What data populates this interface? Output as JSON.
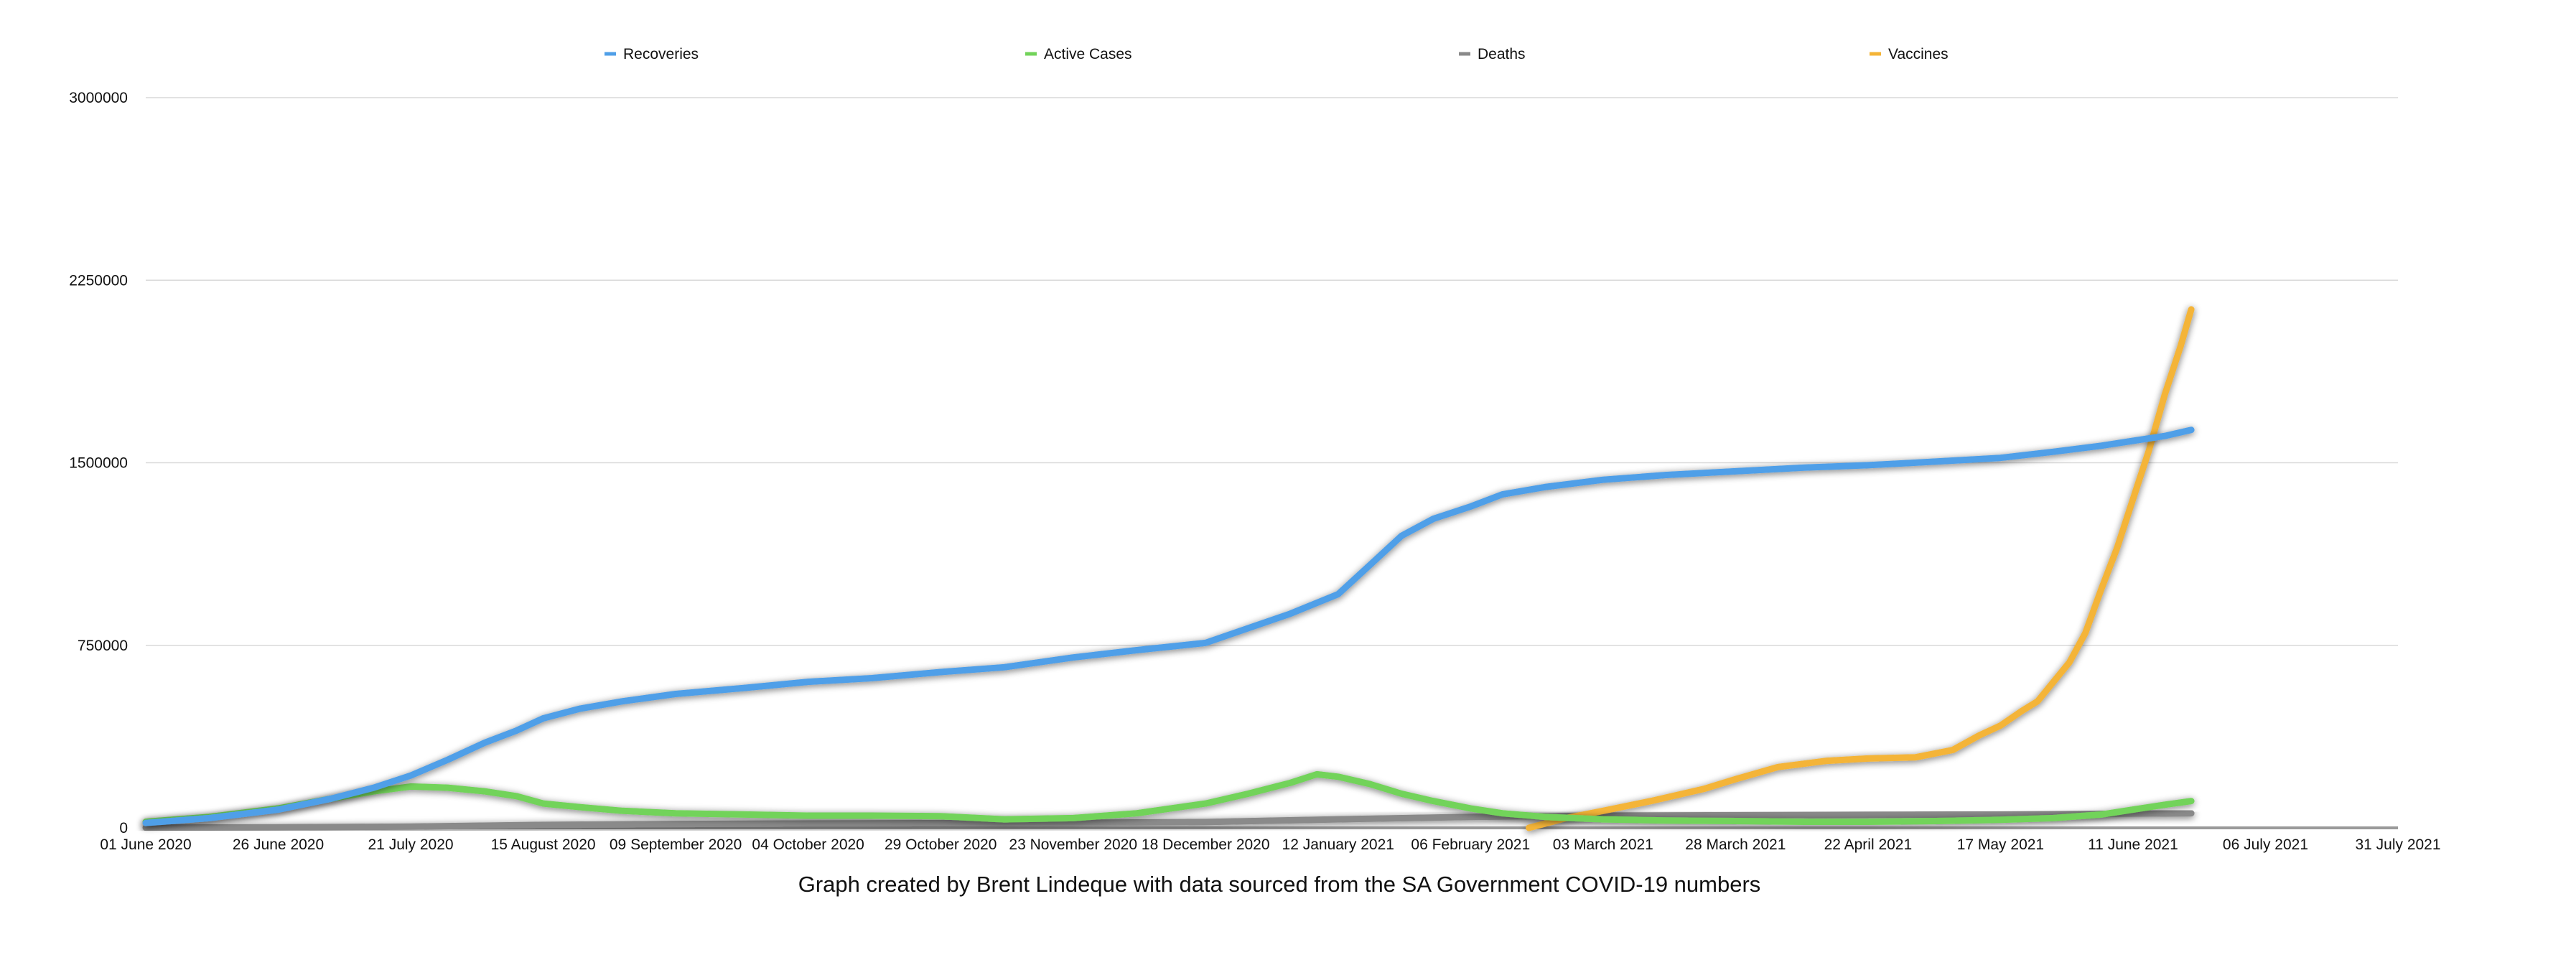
{
  "chart_data": {
    "type": "line",
    "title": "",
    "xlabel": "",
    "ylabel": "",
    "caption": "Graph created by Brent Lindeque with data sourced from the SA Government COVID-19 numbers",
    "ylim": [
      0,
      3000000
    ],
    "y_ticks": [
      {
        "value": 0,
        "label": "0"
      },
      {
        "value": 750000,
        "label": "750000"
      },
      {
        "value": 1500000,
        "label": "1500000"
      },
      {
        "value": 2250000,
        "label": "2250000"
      },
      {
        "value": 3000000,
        "label": "3000000"
      }
    ],
    "xlim": [
      "2020-06-01",
      "2021-07-31"
    ],
    "x_ticks": [
      {
        "date": "2020-06-01",
        "label": "01 June 2020"
      },
      {
        "date": "2020-06-26",
        "label": "26 June 2020"
      },
      {
        "date": "2020-07-21",
        "label": "21 July 2020"
      },
      {
        "date": "2020-08-15",
        "label": "15 August 2020"
      },
      {
        "date": "2020-09-09",
        "label": "09 September 2020"
      },
      {
        "date": "2020-10-04",
        "label": "04 October 2020"
      },
      {
        "date": "2020-10-29",
        "label": "29 October 2020"
      },
      {
        "date": "2020-11-23",
        "label": "23 November 2020"
      },
      {
        "date": "2020-12-18",
        "label": "18 December 2020"
      },
      {
        "date": "2021-01-12",
        "label": "12 January 2021"
      },
      {
        "date": "2021-02-06",
        "label": "06 February 2021"
      },
      {
        "date": "2021-03-03",
        "label": "03 March 2021"
      },
      {
        "date": "2021-03-28",
        "label": "28 March 2021"
      },
      {
        "date": "2021-04-22",
        "label": "22 April 2021"
      },
      {
        "date": "2021-05-17",
        "label": "17 May 2021"
      },
      {
        "date": "2021-06-11",
        "label": "11 June 2021"
      },
      {
        "date": "2021-07-06",
        "label": "06 July 2021"
      },
      {
        "date": "2021-07-31",
        "label": "31 July 2021"
      }
    ],
    "grid": "horizontal",
    "legend_position": "top",
    "series": [
      {
        "name": "Recoveries",
        "color": "#4f9fe8",
        "points": [
          [
            "2020-06-01",
            20000
          ],
          [
            "2020-06-13",
            40000
          ],
          [
            "2020-06-26",
            75000
          ],
          [
            "2020-07-06",
            120000
          ],
          [
            "2020-07-14",
            165000
          ],
          [
            "2020-07-21",
            215000
          ],
          [
            "2020-07-28",
            280000
          ],
          [
            "2020-08-04",
            350000
          ],
          [
            "2020-08-10",
            400000
          ],
          [
            "2020-08-15",
            450000
          ],
          [
            "2020-08-22",
            490000
          ],
          [
            "2020-08-30",
            520000
          ],
          [
            "2020-09-09",
            550000
          ],
          [
            "2020-09-22",
            575000
          ],
          [
            "2020-10-04",
            600000
          ],
          [
            "2020-10-16",
            615000
          ],
          [
            "2020-10-29",
            640000
          ],
          [
            "2020-11-10",
            660000
          ],
          [
            "2020-11-23",
            700000
          ],
          [
            "2020-12-05",
            730000
          ],
          [
            "2020-12-18",
            760000
          ],
          [
            "2020-12-26",
            820000
          ],
          [
            "2021-01-03",
            880000
          ],
          [
            "2021-01-12",
            960000
          ],
          [
            "2021-01-18",
            1080000
          ],
          [
            "2021-01-24",
            1200000
          ],
          [
            "2021-01-30",
            1270000
          ],
          [
            "2021-02-06",
            1320000
          ],
          [
            "2021-02-12",
            1370000
          ],
          [
            "2021-02-20",
            1400000
          ],
          [
            "2021-03-03",
            1430000
          ],
          [
            "2021-03-15",
            1450000
          ],
          [
            "2021-03-28",
            1465000
          ],
          [
            "2021-04-10",
            1480000
          ],
          [
            "2021-04-22",
            1490000
          ],
          [
            "2021-05-05",
            1505000
          ],
          [
            "2021-05-17",
            1520000
          ],
          [
            "2021-05-27",
            1545000
          ],
          [
            "2021-06-05",
            1570000
          ],
          [
            "2021-06-11",
            1590000
          ],
          [
            "2021-06-17",
            1610000
          ],
          [
            "2021-06-22",
            1635000
          ]
        ]
      },
      {
        "name": "Active Cases",
        "color": "#72d35a",
        "points": [
          [
            "2020-06-01",
            25000
          ],
          [
            "2020-06-13",
            45000
          ],
          [
            "2020-06-26",
            80000
          ],
          [
            "2020-07-06",
            120000
          ],
          [
            "2020-07-14",
            150000
          ],
          [
            "2020-07-21",
            170000
          ],
          [
            "2020-07-28",
            165000
          ],
          [
            "2020-08-04",
            150000
          ],
          [
            "2020-08-10",
            130000
          ],
          [
            "2020-08-15",
            100000
          ],
          [
            "2020-08-22",
            85000
          ],
          [
            "2020-08-30",
            70000
          ],
          [
            "2020-09-09",
            60000
          ],
          [
            "2020-09-22",
            55000
          ],
          [
            "2020-10-04",
            50000
          ],
          [
            "2020-10-16",
            50000
          ],
          [
            "2020-10-29",
            48000
          ],
          [
            "2020-11-10",
            35000
          ],
          [
            "2020-11-23",
            40000
          ],
          [
            "2020-12-05",
            60000
          ],
          [
            "2020-12-18",
            100000
          ],
          [
            "2020-12-26",
            140000
          ],
          [
            "2021-01-03",
            185000
          ],
          [
            "2021-01-08",
            220000
          ],
          [
            "2021-01-12",
            210000
          ],
          [
            "2021-01-18",
            180000
          ],
          [
            "2021-01-24",
            140000
          ],
          [
            "2021-01-30",
            110000
          ],
          [
            "2021-02-06",
            80000
          ],
          [
            "2021-02-12",
            60000
          ],
          [
            "2021-02-20",
            45000
          ],
          [
            "2021-03-03",
            35000
          ],
          [
            "2021-03-15",
            30000
          ],
          [
            "2021-03-28",
            28000
          ],
          [
            "2021-04-10",
            25000
          ],
          [
            "2021-04-22",
            25000
          ],
          [
            "2021-05-05",
            28000
          ],
          [
            "2021-05-17",
            33000
          ],
          [
            "2021-05-27",
            40000
          ],
          [
            "2021-06-05",
            55000
          ],
          [
            "2021-06-11",
            75000
          ],
          [
            "2021-06-17",
            95000
          ],
          [
            "2021-06-22",
            110000
          ]
        ]
      },
      {
        "name": "Deaths",
        "color": "#8a8a8a",
        "points": [
          [
            "2020-06-01",
            1000
          ],
          [
            "2020-06-26",
            2000
          ],
          [
            "2020-07-21",
            5000
          ],
          [
            "2020-08-15",
            12000
          ],
          [
            "2020-09-09",
            16000
          ],
          [
            "2020-10-04",
            18000
          ],
          [
            "2020-10-29",
            19500
          ],
          [
            "2020-11-23",
            21000
          ],
          [
            "2020-12-18",
            24000
          ],
          [
            "2021-01-12",
            35000
          ],
          [
            "2021-02-06",
            45000
          ],
          [
            "2021-03-03",
            50000
          ],
          [
            "2021-03-28",
            52000
          ],
          [
            "2021-04-22",
            54000
          ],
          [
            "2021-05-17",
            55000
          ],
          [
            "2021-06-11",
            58000
          ],
          [
            "2021-06-22",
            60000
          ]
        ]
      },
      {
        "name": "Vaccines",
        "color": "#f4b437",
        "points": [
          [
            "2021-02-17",
            0
          ],
          [
            "2021-02-24",
            40000
          ],
          [
            "2021-03-03",
            70000
          ],
          [
            "2021-03-12",
            110000
          ],
          [
            "2021-03-22",
            160000
          ],
          [
            "2021-03-28",
            200000
          ],
          [
            "2021-04-05",
            250000
          ],
          [
            "2021-04-14",
            275000
          ],
          [
            "2021-04-22",
            285000
          ],
          [
            "2021-05-01",
            290000
          ],
          [
            "2021-05-08",
            320000
          ],
          [
            "2021-05-13",
            380000
          ],
          [
            "2021-05-17",
            420000
          ],
          [
            "2021-05-21",
            480000
          ],
          [
            "2021-05-24",
            520000
          ],
          [
            "2021-05-27",
            600000
          ],
          [
            "2021-05-30",
            680000
          ],
          [
            "2021-06-02",
            800000
          ],
          [
            "2021-06-05",
            980000
          ],
          [
            "2021-06-08",
            1150000
          ],
          [
            "2021-06-11",
            1350000
          ],
          [
            "2021-06-14",
            1550000
          ],
          [
            "2021-06-17",
            1780000
          ],
          [
            "2021-06-20",
            1980000
          ],
          [
            "2021-06-22",
            2130000
          ]
        ]
      }
    ]
  }
}
